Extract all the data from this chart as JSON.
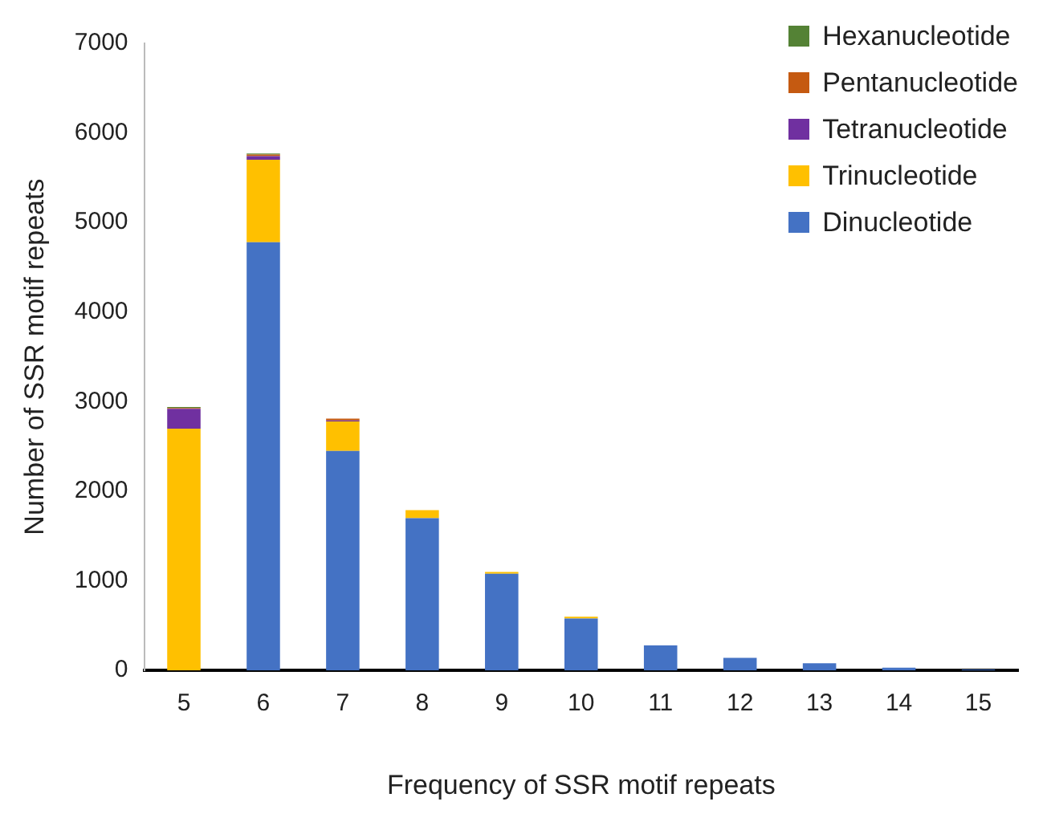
{
  "chart_data": {
    "type": "bar",
    "stacked": true,
    "xlabel": "Frequency of SSR motif repeats",
    "ylabel": "Number of SSR motif repeats",
    "categories": [
      "5",
      "6",
      "7",
      "8",
      "9",
      "10",
      "11",
      "12",
      "13",
      "14",
      "15"
    ],
    "series": [
      {
        "name": "Dinucleotide",
        "color": "#4472c4",
        "values": [
          0,
          4780,
          2450,
          1700,
          1080,
          580,
          280,
          140,
          80,
          30,
          10
        ]
      },
      {
        "name": "Trinucleotide",
        "color": "#ffc000",
        "values": [
          2700,
          920,
          330,
          90,
          20,
          20,
          0,
          0,
          0,
          0,
          0
        ]
      },
      {
        "name": "Tetranucleotide",
        "color": "#7030a0",
        "values": [
          220,
          40,
          10,
          0,
          0,
          0,
          0,
          0,
          0,
          0,
          0
        ]
      },
      {
        "name": "Pentanucleotide",
        "color": "#c55a11",
        "values": [
          10,
          20,
          20,
          0,
          0,
          0,
          0,
          0,
          0,
          0,
          0
        ]
      },
      {
        "name": "Hexanucleotide",
        "color": "#548235",
        "values": [
          10,
          10,
          0,
          0,
          0,
          0,
          0,
          0,
          0,
          0,
          0
        ]
      }
    ],
    "ylim": [
      0,
      7000
    ],
    "yticks": [
      0,
      1000,
      2000,
      3000,
      4000,
      5000,
      6000,
      7000
    ],
    "grid": false,
    "legend": "top right"
  }
}
